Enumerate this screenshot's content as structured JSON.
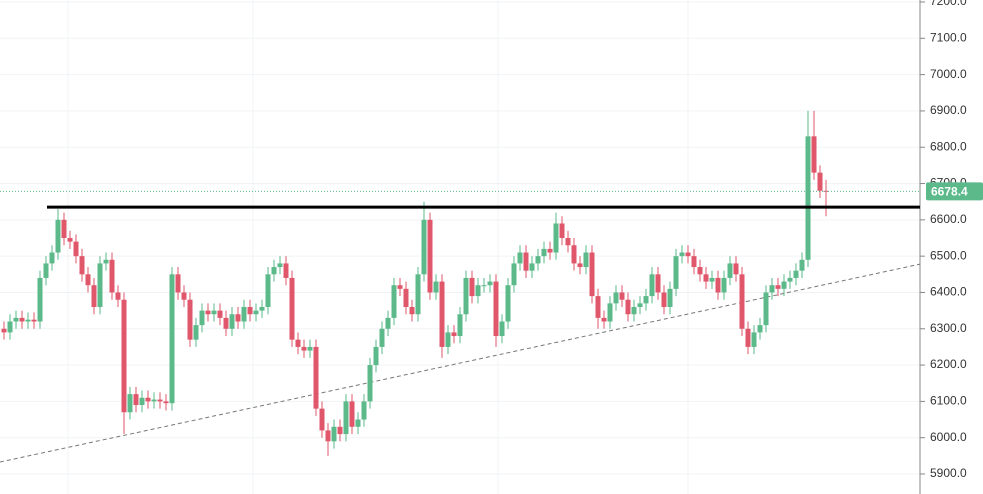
{
  "chart_data": {
    "type": "candlestick",
    "open": [
      6300,
      6290,
      6320,
      6330,
      6320,
      6325,
      6320,
      6440,
      6480,
      6510,
      6600,
      6550,
      6540,
      6500,
      6450,
      6420,
      6360,
      6480,
      6490,
      6400,
      6380,
      6070,
      6120,
      6090,
      6110,
      6100,
      6105,
      6100,
      6095,
      6450,
      6400,
      6380,
      6270,
      6310,
      6350,
      6340,
      6350,
      6330,
      6300,
      6340,
      6320,
      6360,
      6340,
      6350,
      6360,
      6450,
      6470,
      6480,
      6440,
      6270,
      6250,
      6240,
      6250,
      6080,
      6020,
      5990,
      6030,
      6010,
      6100,
      6030,
      6050,
      6100,
      6200,
      6250,
      6300,
      6330,
      6420,
      6410,
      6360,
      6340,
      6450,
      6600,
      6400,
      6430,
      6250,
      6290,
      6280,
      6340,
      6440,
      6390,
      6420,
      6420,
      6430,
      6280,
      6320,
      6420,
      6480,
      6510,
      6460,
      6480,
      6500,
      6520,
      6510,
      6590,
      6550,
      6530,
      6480,
      6470,
      6510,
      6390,
      6330,
      6320,
      6370,
      6400,
      6380,
      6340,
      6360,
      6370,
      6390,
      6450,
      6400,
      6360,
      6410,
      6500,
      6510,
      6500,
      6470,
      6450,
      6430,
      6440,
      6400,
      6440,
      6480,
      6450,
      6300,
      6250,
      6290,
      6310,
      6400,
      6420,
      6410,
      6430,
      6440,
      6460,
      6490,
      6830,
      6730,
      6680
    ],
    "high": [
      6320,
      6340,
      6350,
      6350,
      6345,
      6345,
      6460,
      6500,
      6530,
      6630,
      6620,
      6570,
      6560,
      6520,
      6470,
      6440,
      6500,
      6510,
      6510,
      6420,
      6400,
      6140,
      6140,
      6130,
      6130,
      6125,
      6125,
      6120,
      6470,
      6470,
      6420,
      6400,
      6330,
      6370,
      6370,
      6370,
      6370,
      6350,
      6360,
      6360,
      6380,
      6380,
      6370,
      6380,
      6470,
      6490,
      6500,
      6500,
      6460,
      6290,
      6270,
      6270,
      6270,
      6100,
      6040,
      6050,
      6050,
      6120,
      6120,
      6070,
      6120,
      6220,
      6270,
      6320,
      6350,
      6440,
      6440,
      6430,
      6380,
      6470,
      6650,
      6620,
      6450,
      6450,
      6310,
      6310,
      6360,
      6460,
      6460,
      6440,
      6440,
      6450,
      6450,
      6340,
      6440,
      6500,
      6530,
      6530,
      6500,
      6520,
      6540,
      6540,
      6620,
      6610,
      6570,
      6550,
      6500,
      6530,
      6530,
      6410,
      6350,
      6390,
      6420,
      6420,
      6400,
      6380,
      6390,
      6410,
      6470,
      6470,
      6420,
      6430,
      6520,
      6530,
      6530,
      6520,
      6490,
      6470,
      6460,
      6460,
      6460,
      6500,
      6500,
      6470,
      6320,
      6310,
      6330,
      6420,
      6440,
      6440,
      6450,
      6460,
      6480,
      6510,
      6900,
      6900,
      6750,
      6710
    ],
    "low": [
      6270,
      6270,
      6300,
      6300,
      6300,
      6300,
      6300,
      6420,
      6460,
      6490,
      6530,
      6520,
      6480,
      6430,
      6400,
      6340,
      6340,
      6460,
      6380,
      6360,
      6010,
      6050,
      6070,
      6070,
      6080,
      6080,
      6080,
      6075,
      6075,
      6380,
      6360,
      6250,
      6250,
      6290,
      6320,
      6320,
      6310,
      6280,
      6280,
      6300,
      6300,
      6320,
      6320,
      6330,
      6340,
      6430,
      6450,
      6420,
      6250,
      6230,
      6220,
      6220,
      6060,
      6000,
      5950,
      5970,
      5990,
      5990,
      6010,
      6010,
      6030,
      6080,
      6180,
      6230,
      6280,
      6310,
      6390,
      6340,
      6320,
      6320,
      6430,
      6380,
      6380,
      6220,
      6230,
      6260,
      6260,
      6320,
      6370,
      6370,
      6400,
      6400,
      6250,
      6260,
      6300,
      6400,
      6460,
      6440,
      6440,
      6460,
      6480,
      6490,
      6490,
      6530,
      6510,
      6460,
      6450,
      6450,
      6370,
      6300,
      6300,
      6300,
      6350,
      6360,
      6320,
      6320,
      6340,
      6350,
      6370,
      6380,
      6340,
      6340,
      6390,
      6480,
      6480,
      6450,
      6430,
      6410,
      6410,
      6380,
      6380,
      6420,
      6430,
      6280,
      6230,
      6230,
      6270,
      6290,
      6380,
      6390,
      6390,
      6410,
      6420,
      6440,
      6470,
      6710,
      6660,
      6610
    ],
    "close": [
      6290,
      6320,
      6330,
      6320,
      6325,
      6320,
      6440,
      6480,
      6510,
      6600,
      6550,
      6540,
      6500,
      6450,
      6420,
      6360,
      6480,
      6490,
      6400,
      6380,
      6070,
      6120,
      6090,
      6110,
      6100,
      6105,
      6100,
      6095,
      6450,
      6400,
      6380,
      6270,
      6310,
      6350,
      6340,
      6350,
      6330,
      6300,
      6340,
      6320,
      6360,
      6340,
      6350,
      6360,
      6450,
      6470,
      6480,
      6440,
      6270,
      6250,
      6240,
      6250,
      6080,
      6020,
      5990,
      6030,
      6010,
      6100,
      6030,
      6050,
      6100,
      6200,
      6250,
      6300,
      6330,
      6420,
      6410,
      6360,
      6340,
      6450,
      6600,
      6400,
      6430,
      6250,
      6290,
      6280,
      6340,
      6440,
      6390,
      6420,
      6420,
      6430,
      6280,
      6320,
      6420,
      6480,
      6510,
      6460,
      6480,
      6500,
      6520,
      6510,
      6590,
      6550,
      6530,
      6480,
      6470,
      6510,
      6390,
      6330,
      6320,
      6370,
      6400,
      6380,
      6340,
      6360,
      6370,
      6390,
      6450,
      6400,
      6360,
      6410,
      6500,
      6510,
      6500,
      6470,
      6450,
      6430,
      6440,
      6400,
      6440,
      6480,
      6450,
      6300,
      6250,
      6290,
      6310,
      6400,
      6420,
      6410,
      6430,
      6440,
      6460,
      6490,
      6830,
      6730,
      6680,
      6678.4
    ],
    "up_color": "#5bb98a",
    "down_color": "#e0566a",
    "ylim": [
      5900,
      7200
    ],
    "yticks": [
      {
        "value": 5900,
        "label": "5900.0"
      },
      {
        "value": 6000,
        "label": "6000.0"
      },
      {
        "value": 6100,
        "label": "6100.0"
      },
      {
        "value": 6200,
        "label": "6200.0"
      },
      {
        "value": 6300,
        "label": "6300.0"
      },
      {
        "value": 6400,
        "label": "6400.0"
      },
      {
        "value": 6500,
        "label": "6500.0"
      },
      {
        "value": 6600,
        "label": "6600.0"
      },
      {
        "value": 6700,
        "label": "6700.0"
      },
      {
        "value": 6800,
        "label": "6800.0"
      },
      {
        "value": 6900,
        "label": "6900.0"
      },
      {
        "value": 7000,
        "label": "7000.0"
      },
      {
        "value": 7100,
        "label": "7100.0"
      },
      {
        "value": 7200,
        "label": "7200.0"
      }
    ],
    "grid": true,
    "last_price": 6678.4,
    "horizontal_line": 6635,
    "trend_line": [
      5933,
      6478
    ]
  }
}
